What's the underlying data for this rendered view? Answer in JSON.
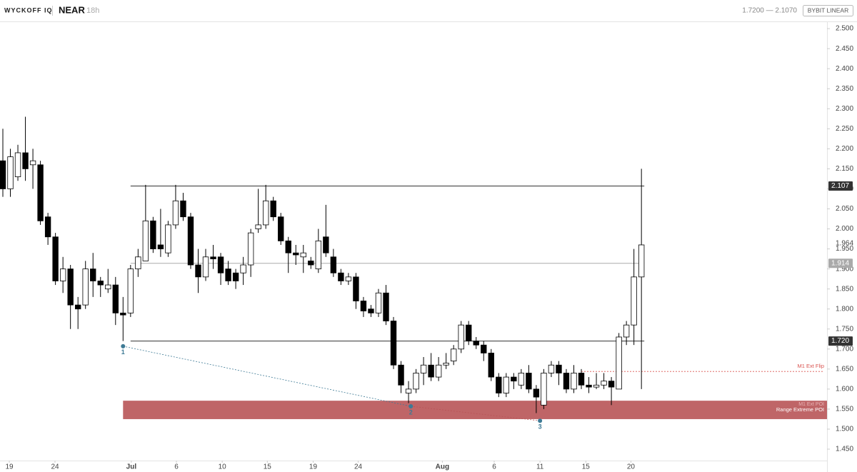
{
  "header": {
    "brand": "WYCKOFF IQ",
    "symbol": "NEAR",
    "interval": "18h",
    "range": "1.7200 — 2.1070",
    "exchange": "BYBIT LINEAR"
  },
  "chart_data": {
    "type": "candlestick",
    "open": [
      2.17,
      2.1,
      2.13,
      2.19,
      2.16,
      2.16,
      2.03,
      1.98,
      1.87,
      1.9,
      1.81,
      1.81,
      1.9,
      1.87,
      1.85,
      1.86,
      1.79,
      1.79,
      1.9,
      1.92,
      2.02,
      1.96,
      1.94,
      2.01,
      2.07,
      2.03,
      1.91,
      1.88,
      1.93,
      1.93,
      1.9,
      1.89,
      1.89,
      1.91,
      2.0,
      2.01,
      2.07,
      2.03,
      1.97,
      1.94,
      1.93,
      1.92,
      1.9,
      1.98,
      1.93,
      1.89,
      1.87,
      1.88,
      1.82,
      1.8,
      1.79,
      1.84,
      1.77,
      1.66,
      1.59,
      1.6,
      1.64,
      1.66,
      1.63,
      1.66,
      1.67,
      1.7,
      1.76,
      1.72,
      1.71,
      1.69,
      1.63,
      1.59,
      1.63,
      1.61,
      1.64,
      1.6,
      1.56,
      1.64,
      1.66,
      1.64,
      1.6,
      1.64,
      1.61,
      1.605,
      1.61,
      1.62,
      1.6,
      1.73,
      1.76,
      1.88
    ],
    "high": [
      2.25,
      2.2,
      2.21,
      2.28,
      2.2,
      2.17,
      2.04,
      1.99,
      1.93,
      1.91,
      1.83,
      1.92,
      1.94,
      1.88,
      1.9,
      1.88,
      1.83,
      1.91,
      1.95,
      2.11,
      2.03,
      2.05,
      2.02,
      2.11,
      2.09,
      2.04,
      1.95,
      1.95,
      1.96,
      1.94,
      1.92,
      1.9,
      1.93,
      2.0,
      2.1,
      2.11,
      2.08,
      2.04,
      1.98,
      1.96,
      1.96,
      1.93,
      2.0,
      2.06,
      1.95,
      1.9,
      1.89,
      1.89,
      1.83,
      1.81,
      1.85,
      1.86,
      1.78,
      1.67,
      1.62,
      1.65,
      1.68,
      1.69,
      1.68,
      1.69,
      1.71,
      1.77,
      1.77,
      1.73,
      1.72,
      1.7,
      1.64,
      1.64,
      1.64,
      1.65,
      1.66,
      1.61,
      1.65,
      1.67,
      1.67,
      1.65,
      1.66,
      1.65,
      1.63,
      1.64,
      1.64,
      1.63,
      1.74,
      1.77,
      1.95,
      2.15
    ],
    "low": [
      2.08,
      2.08,
      2.12,
      2.12,
      2.1,
      2.01,
      1.96,
      1.86,
      1.84,
      1.75,
      1.75,
      1.8,
      1.83,
      1.83,
      1.84,
      1.76,
      1.72,
      1.78,
      1.88,
      1.92,
      1.94,
      1.93,
      1.93,
      2.0,
      2.02,
      1.9,
      1.84,
      1.87,
      1.9,
      1.86,
      1.86,
      1.85,
      1.86,
      1.88,
      1.99,
      2.0,
      2.02,
      1.96,
      1.89,
      1.91,
      1.89,
      1.9,
      1.89,
      1.93,
      1.88,
      1.86,
      1.86,
      1.8,
      1.78,
      1.78,
      1.78,
      1.76,
      1.65,
      1.59,
      1.565,
      1.59,
      1.61,
      1.62,
      1.62,
      1.65,
      1.66,
      1.69,
      1.71,
      1.7,
      1.67,
      1.62,
      1.58,
      1.58,
      1.6,
      1.6,
      1.59,
      1.54,
      1.55,
      1.63,
      1.61,
      1.59,
      1.59,
      1.6,
      1.59,
      1.6,
      1.6,
      1.56,
      1.6,
      1.71,
      1.71,
      1.6
    ],
    "close": [
      2.1,
      2.18,
      2.19,
      2.15,
      2.17,
      2.02,
      1.98,
      1.87,
      1.9,
      1.81,
      1.8,
      1.9,
      1.87,
      1.86,
      1.86,
      1.79,
      1.785,
      1.9,
      1.93,
      2.02,
      1.95,
      1.95,
      2.01,
      2.07,
      2.03,
      1.91,
      1.88,
      1.93,
      1.925,
      1.89,
      1.87,
      1.87,
      1.91,
      1.99,
      2.01,
      2.07,
      2.03,
      1.97,
      1.94,
      1.935,
      1.94,
      1.91,
      1.97,
      1.94,
      1.89,
      1.87,
      1.88,
      1.82,
      1.795,
      1.79,
      1.84,
      1.77,
      1.66,
      1.61,
      1.6,
      1.64,
      1.66,
      1.63,
      1.66,
      1.665,
      1.7,
      1.76,
      1.72,
      1.71,
      1.69,
      1.63,
      1.59,
      1.63,
      1.62,
      1.64,
      1.6,
      1.58,
      1.64,
      1.66,
      1.64,
      1.6,
      1.64,
      1.61,
      1.605,
      1.61,
      1.62,
      1.605,
      1.73,
      1.76,
      1.88,
      1.96
    ],
    "xlim": [
      -0.38,
      109.7
    ],
    "xticks": [
      {
        "value": 0.86,
        "label": "19"
      },
      {
        "value": 6.94,
        "label": "24"
      },
      {
        "value": 17.1,
        "label": "Jul"
      },
      {
        "value": 23.1,
        "label": "6"
      },
      {
        "value": 29.2,
        "label": "10"
      },
      {
        "value": 35.2,
        "label": "15"
      },
      {
        "value": 41.3,
        "label": "19"
      },
      {
        "value": 47.3,
        "label": "24"
      },
      {
        "value": 58.5,
        "label": "Aug"
      },
      {
        "value": 65.4,
        "label": "6"
      },
      {
        "value": 71.5,
        "label": "11"
      },
      {
        "value": 77.6,
        "label": "15"
      },
      {
        "value": 83.6,
        "label": "20"
      }
    ],
    "ylim": [
      1.4215,
      2.518
    ],
    "yticks": [
      {
        "value": 1.45,
        "label": "1.450"
      },
      {
        "value": 1.5,
        "label": "1.500"
      },
      {
        "value": 1.55,
        "label": "1.550"
      },
      {
        "value": 1.6,
        "label": "1.600"
      },
      {
        "value": 1.65,
        "label": "1.650"
      },
      {
        "value": 1.7,
        "label": "1.700"
      },
      {
        "value": 1.75,
        "label": "1.750"
      },
      {
        "value": 1.8,
        "label": "1.800"
      },
      {
        "value": 1.85,
        "label": "1.850"
      },
      {
        "value": 1.9,
        "label": "1.900"
      },
      {
        "value": 1.95,
        "label": "1.950"
      },
      {
        "value": 2.0,
        "label": "2.000"
      },
      {
        "value": 2.05,
        "label": "2.050"
      },
      {
        "value": 2.1,
        "label": "2.100"
      },
      {
        "value": 2.15,
        "label": "2.150"
      },
      {
        "value": 2.2,
        "label": "2.200"
      },
      {
        "value": 2.25,
        "label": "2.250"
      },
      {
        "value": 2.3,
        "label": "2.300"
      },
      {
        "value": 2.35,
        "label": "2.350"
      },
      {
        "value": 2.4,
        "label": "2.400"
      },
      {
        "value": 2.45,
        "label": "2.450"
      },
      {
        "value": 2.5,
        "label": "2.500"
      }
    ],
    "levels": [
      {
        "value": 2.107,
        "label": "2.107",
        "color": "#333333",
        "start": 17,
        "end": 85
      },
      {
        "value": 1.914,
        "label": "1.914",
        "color": "#aaaaaa",
        "start": 17,
        "end": 85
      },
      {
        "value": 1.72,
        "label": "1.720",
        "color": "#333333",
        "start": 17,
        "end": 85
      }
    ],
    "last_price": {
      "value": 1.964,
      "label": "1.964"
    },
    "zone": {
      "top": 1.571,
      "bottom": 1.525,
      "start": 16,
      "color": "#b85457",
      "labels": [
        "M1 Ext POI",
        "Range Extreme POI"
      ]
    },
    "flip": {
      "value": 1.644,
      "start": 77,
      "label": "M1 Ext Flip",
      "color": "#d9534f"
    },
    "points": [
      {
        "label": "1",
        "x": 16,
        "y": 1.707
      },
      {
        "label": "2",
        "x": 54.3,
        "y": 1.557
      },
      {
        "label": "3",
        "x": 71.5,
        "y": 1.521
      }
    ],
    "point_color": "#3e7a95",
    "link_colors": [
      "#3e7a95",
      "#b85457"
    ]
  }
}
